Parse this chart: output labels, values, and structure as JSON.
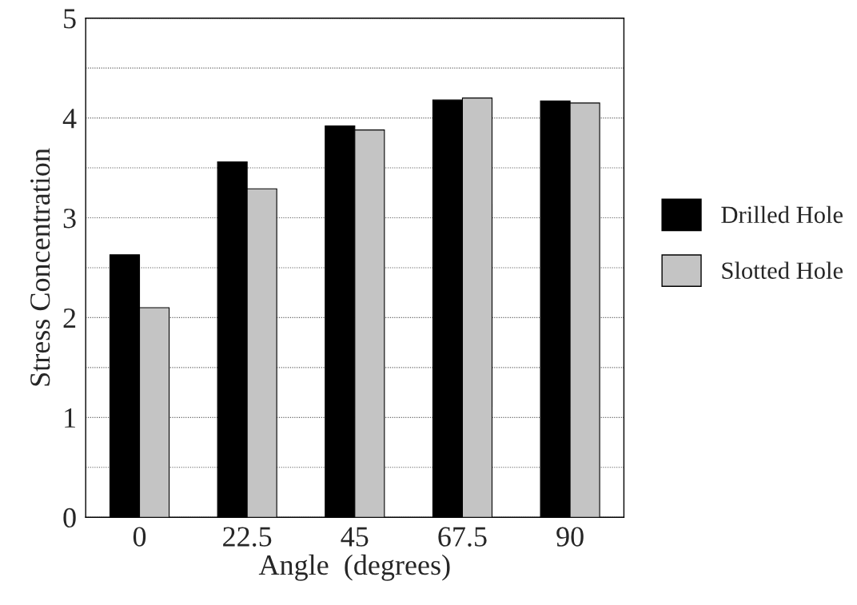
{
  "chart_data": {
    "type": "bar",
    "xlabel": "Angle  (degrees)",
    "ylabel": "Stress Concentration",
    "categories": [
      "0",
      "22.5",
      "45",
      "67.5",
      "90"
    ],
    "series": [
      {
        "name": "Drilled Hole",
        "color": "#000000",
        "values": [
          2.63,
          3.56,
          3.92,
          4.18,
          4.17
        ]
      },
      {
        "name": "Slotted Hole",
        "color": "#c4c4c4",
        "values": [
          2.1,
          3.29,
          3.88,
          4.2,
          4.15
        ]
      }
    ],
    "ylim": [
      0,
      5
    ],
    "yticks": [
      0,
      {
        "value": 0.5,
        "label": null
      },
      1,
      {
        "value": 1.5,
        "label": null
      },
      2,
      {
        "value": 2.5,
        "label": null
      },
      3,
      {
        "value": 3.5,
        "label": null
      },
      4,
      {
        "value": 4.5,
        "label": null
      },
      5
    ],
    "grid": "y",
    "legend": "right"
  }
}
